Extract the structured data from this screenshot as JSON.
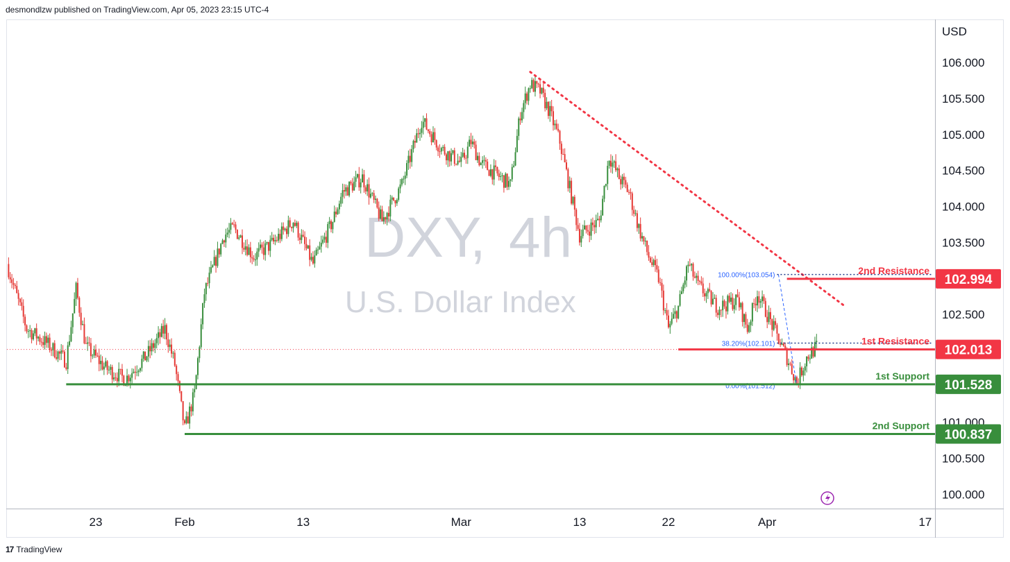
{
  "header": {
    "publisher": "desmondlzw published on TradingView.com, Apr 05, 2023 23:15 UTC-4"
  },
  "footer": {
    "brand": "TradingView",
    "logo_icon": "tradingview-logo-icon"
  },
  "colors": {
    "up": "#388e3c",
    "down": "#e53935",
    "resistance": "#f23645",
    "support": "#388e3c",
    "fib": "#2962ff",
    "watermark": "#d1d4dc"
  },
  "chart_data": {
    "type": "candlestick",
    "symbol": "DXY",
    "interval": "4h",
    "instrument_name": "U.S. Dollar Index",
    "currency": "USD",
    "ylim": [
      99.8,
      106.6
    ],
    "y_ticks": [
      {
        "value": 100.0,
        "label": "100.000"
      },
      {
        "value": 100.5,
        "label": "100.500"
      },
      {
        "value": 101.0,
        "label": "101.000"
      },
      {
        "value": 102.5,
        "label": "102.500"
      },
      {
        "value": 103.5,
        "label": "103.500"
      },
      {
        "value": 104.0,
        "label": "104.000"
      },
      {
        "value": 104.5,
        "label": "104.500"
      },
      {
        "value": 105.0,
        "label": "105.000"
      },
      {
        "value": 105.5,
        "label": "105.500"
      },
      {
        "value": 106.0,
        "label": "106.000"
      }
    ],
    "x_range": [
      "2023-01-14",
      "2023-04-18"
    ],
    "x_ticks": [
      {
        "date": "2023-01-23",
        "label": "23"
      },
      {
        "date": "2023-02-01",
        "label": "Feb"
      },
      {
        "date": "2023-02-13",
        "label": "13"
      },
      {
        "date": "2023-03-01",
        "label": "Mar"
      },
      {
        "date": "2023-03-13",
        "label": "13"
      },
      {
        "date": "2023-03-22",
        "label": "22"
      },
      {
        "date": "2023-04-01",
        "label": "Apr"
      },
      {
        "date": "2023-04-17",
        "label": "17"
      }
    ],
    "price_path": [
      [
        "2023-01-14",
        103.2
      ],
      [
        "2023-01-16",
        102.3
      ],
      [
        "2023-01-18",
        102.1
      ],
      [
        "2023-01-20",
        101.85
      ],
      [
        "2023-01-21",
        102.85
      ],
      [
        "2023-01-22",
        102.05
      ],
      [
        "2023-01-24",
        101.75
      ],
      [
        "2023-01-26",
        101.6
      ],
      [
        "2023-01-28",
        101.9
      ],
      [
        "2023-01-30",
        102.3
      ],
      [
        "2023-01-31",
        101.8
      ],
      [
        "2023-02-01",
        100.9
      ],
      [
        "2023-02-02",
        101.4
      ],
      [
        "2023-02-03",
        102.8
      ],
      [
        "2023-02-05",
        103.6
      ],
      [
        "2023-02-06",
        103.7
      ],
      [
        "2023-02-08",
        103.3
      ],
      [
        "2023-02-10",
        103.5
      ],
      [
        "2023-02-12",
        103.8
      ],
      [
        "2023-02-14",
        103.2
      ],
      [
        "2023-02-16",
        103.8
      ],
      [
        "2023-02-17",
        104.2
      ],
      [
        "2023-02-19",
        104.4
      ],
      [
        "2023-02-21",
        103.8
      ],
      [
        "2023-02-23",
        104.3
      ],
      [
        "2023-02-25",
        105.2
      ],
      [
        "2023-02-27",
        104.8
      ],
      [
        "2023-02-28",
        104.7
      ],
      [
        "2023-03-01",
        104.6
      ],
      [
        "2023-03-02",
        104.9
      ],
      [
        "2023-03-03",
        104.6
      ],
      [
        "2023-03-05",
        104.4
      ],
      [
        "2023-03-06",
        104.3
      ],
      [
        "2023-03-07",
        105.3
      ],
      [
        "2023-03-08",
        105.7
      ],
      [
        "2023-03-09",
        105.6
      ],
      [
        "2023-03-10",
        105.3
      ],
      [
        "2023-03-11",
        104.9
      ],
      [
        "2023-03-13",
        103.6
      ],
      [
        "2023-03-14",
        103.7
      ],
      [
        "2023-03-15",
        103.8
      ],
      [
        "2023-03-16",
        104.7
      ],
      [
        "2023-03-17",
        104.4
      ],
      [
        "2023-03-18",
        104.2
      ],
      [
        "2023-03-19",
        103.7
      ],
      [
        "2023-03-20",
        103.3
      ],
      [
        "2023-03-21",
        103.0
      ],
      [
        "2023-03-22",
        102.3
      ],
      [
        "2023-03-23",
        102.6
      ],
      [
        "2023-03-24",
        103.2
      ],
      [
        "2023-03-25",
        102.9
      ],
      [
        "2023-03-27",
        102.6
      ],
      [
        "2023-03-29",
        102.7
      ],
      [
        "2023-03-30",
        102.3
      ],
      [
        "2023-03-31",
        102.8
      ],
      [
        "2023-04-01",
        102.5
      ],
      [
        "2023-04-02",
        102.2
      ],
      [
        "2023-04-03",
        101.9
      ],
      [
        "2023-04-04",
        101.55
      ],
      [
        "2023-04-05",
        101.9
      ],
      [
        "2023-04-06",
        102.05
      ]
    ],
    "price_levels": [
      {
        "name": "2nd Resistance",
        "value": 102.994,
        "label": "102.994",
        "start": "2023-04-03",
        "color": "resistance"
      },
      {
        "name": "1st Resistance",
        "value": 102.013,
        "label": "102.013",
        "start": "2023-03-23",
        "color": "resistance"
      },
      {
        "name": "1st Support",
        "value": 101.528,
        "label": "101.528",
        "start": "2023-01-20",
        "color": "support"
      },
      {
        "name": "2nd Support",
        "value": 100.837,
        "label": "100.837",
        "start": "2023-02-01",
        "color": "support"
      }
    ],
    "fib_levels": [
      {
        "label": "100.00%(103.054)",
        "value": 103.054
      },
      {
        "label": "38.20%(102.101)",
        "value": 102.101
      },
      {
        "label": "0.00%(101.512)",
        "value": 101.512
      }
    ],
    "trendline": {
      "start": [
        "2023-03-08",
        105.87
      ],
      "end": [
        "2023-04-09",
        102.6
      ]
    },
    "current_price": 102.013
  }
}
